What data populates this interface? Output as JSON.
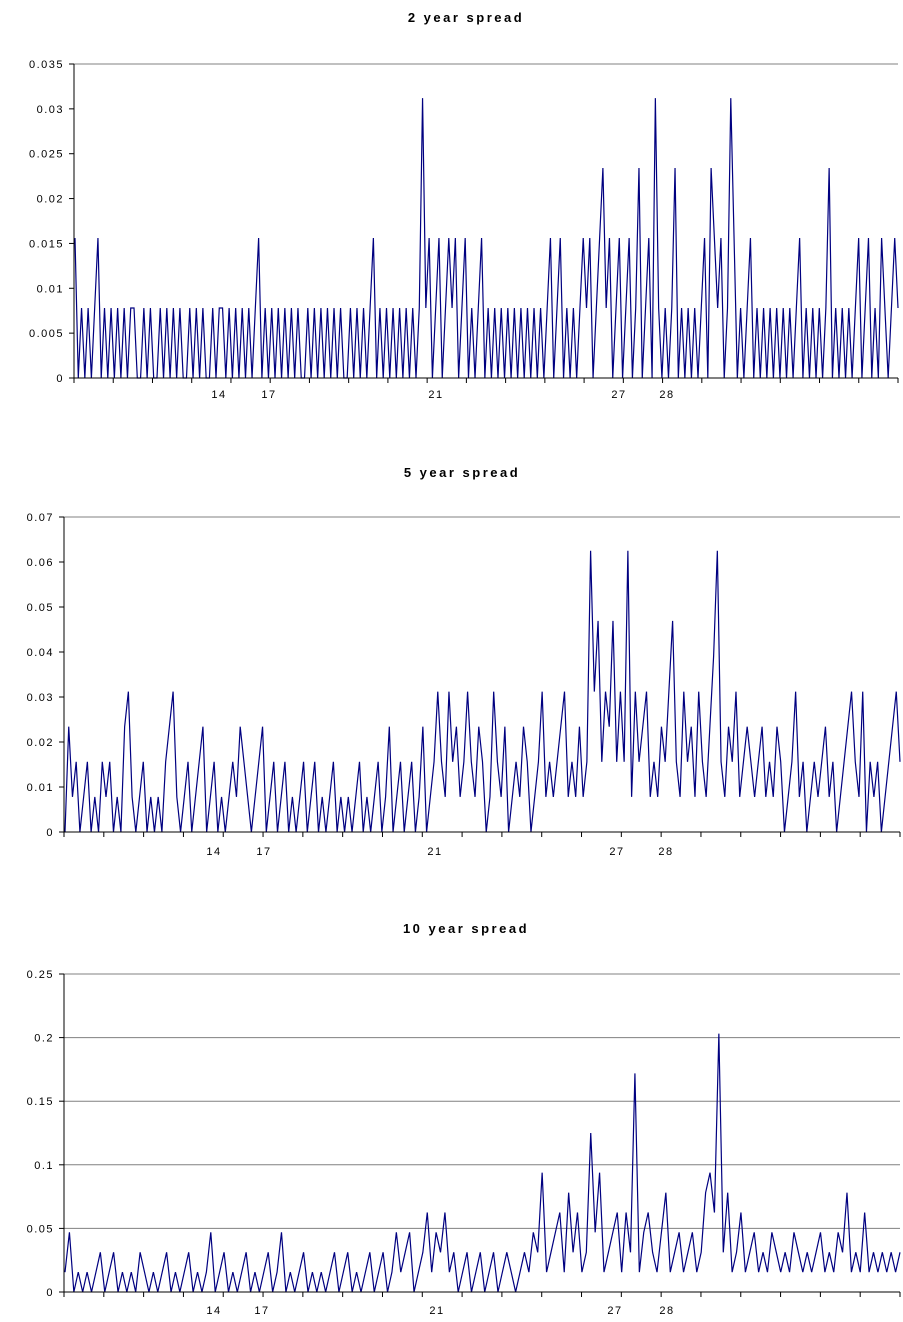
{
  "colors": {
    "series": "#000080",
    "axis": "#000000",
    "grid": "#808080",
    "background": "#ffffff"
  },
  "chart_data": [
    {
      "type": "line",
      "title": "2 year spread",
      "xlabel": "",
      "ylabel": "",
      "ylim": [
        0,
        0.035
      ],
      "yticks": [
        "0",
        "0.005",
        "0.01",
        "0.015",
        "0.02",
        "0.025",
        "0.03",
        "0.035"
      ],
      "xtick_labels": [
        "14",
        "17",
        "21",
        "27",
        "28"
      ],
      "grid": "horizontal-top-only",
      "legend": "none",
      "series": [
        {
          "values": [
            0.0156,
            0,
            0.0078,
            0,
            0.0078,
            0,
            0.0078,
            0.0156,
            0,
            0.0078,
            0,
            0.0078,
            0,
            0.0078,
            0,
            0.0078,
            0,
            0.0078,
            0.0078,
            0,
            0,
            0.0078,
            0,
            0.0078,
            0,
            0,
            0.0078,
            0,
            0.0078,
            0,
            0.0078,
            0,
            0.0078,
            0,
            0,
            0.0078,
            0,
            0.0078,
            0,
            0.0078,
            0,
            0,
            0.0078,
            0,
            0.0078,
            0.0078,
            0,
            0.0078,
            0,
            0.0078,
            0,
            0.0078,
            0,
            0.0078,
            0,
            0.0078,
            0.0156,
            0,
            0.0078,
            0,
            0.0078,
            0,
            0.0078,
            0,
            0.0078,
            0,
            0.0078,
            0,
            0.0078,
            0,
            0,
            0.0078,
            0,
            0.0078,
            0,
            0.0078,
            0,
            0.0078,
            0,
            0.0078,
            0,
            0.0078,
            0,
            0,
            0.0078,
            0,
            0.0078,
            0,
            0.0078,
            0,
            0.0078,
            0.0156,
            0,
            0.0078,
            0,
            0.0078,
            0,
            0.0078,
            0,
            0.0078,
            0,
            0.0078,
            0,
            0.0078,
            0,
            0.0078,
            0.0312,
            0.0078,
            0.0156,
            0,
            0.0078,
            0.0156,
            0,
            0.0078,
            0.0156,
            0.0078,
            0.0156,
            0,
            0.0078,
            0.0156,
            0,
            0.0078,
            0,
            0.0078,
            0.0156,
            0,
            0.0078,
            0,
            0.0078,
            0,
            0.0078,
            0,
            0.0078,
            0,
            0.0078,
            0,
            0.0078,
            0,
            0.0078,
            0,
            0.0078,
            0,
            0.0078,
            0,
            0.0078,
            0.0156,
            0,
            0.0078,
            0.0156,
            0,
            0.0078,
            0,
            0.0078,
            0,
            0.0078,
            0.0156,
            0.0078,
            0.0156,
            0,
            0.0078,
            0.0156,
            0.0234,
            0.0078,
            0.0156,
            0,
            0.0078,
            0.0156,
            0,
            0.0078,
            0.0156,
            0,
            0.0078,
            0.0234,
            0,
            0.0078,
            0.0156,
            0,
            0.0312,
            0.0078,
            0,
            0.0078,
            0,
            0.0078,
            0.0234,
            0,
            0.0078,
            0,
            0.0078,
            0,
            0.0078,
            0,
            0.0078,
            0.0156,
            0,
            0.0234,
            0.0156,
            0.0078,
            0.0156,
            0,
            0.0078,
            0.0312,
            0.0156,
            0,
            0.0078,
            0,
            0.0078,
            0.0156,
            0,
            0.0078,
            0,
            0.0078,
            0,
            0.0078,
            0,
            0.0078,
            0,
            0.0078,
            0,
            0.0078,
            0,
            0.0078,
            0.0156,
            0,
            0.0078,
            0,
            0.0078,
            0,
            0.0078,
            0,
            0.0078,
            0.0234,
            0,
            0.0078,
            0,
            0.0078,
            0,
            0.0078,
            0,
            0.0078,
            0.0156,
            0,
            0.0078,
            0.0156,
            0,
            0.0078,
            0,
            0.0156,
            0.0078,
            0,
            0.0078,
            0.0156,
            0.0078
          ]
        }
      ]
    },
    {
      "type": "line",
      "title": "5 year spread",
      "xlabel": "",
      "ylabel": "",
      "ylim": [
        0,
        0.07
      ],
      "yticks": [
        "0",
        "0.01",
        "0.02",
        "0.03",
        "0.04",
        "0.05",
        "0.06",
        "0.07"
      ],
      "xtick_labels": [
        "14",
        "17",
        "21",
        "27",
        "28"
      ],
      "grid": "horizontal-top-only",
      "legend": "none",
      "series": [
        {
          "values": [
            0,
            0.0234,
            0.0078,
            0.0156,
            0,
            0.0078,
            0.0156,
            0,
            0.0078,
            0,
            0.0156,
            0.0078,
            0.0156,
            0,
            0.0078,
            0,
            0.0234,
            0.0312,
            0.0078,
            0,
            0.0078,
            0.0156,
            0,
            0.0078,
            0,
            0.0078,
            0,
            0.0156,
            0.0234,
            0.0312,
            0.0078,
            0,
            0.0078,
            0.0156,
            0,
            0.0078,
            0.0156,
            0.0234,
            0,
            0.0078,
            0.0156,
            0,
            0.0078,
            0,
            0.0078,
            0.0156,
            0.0078,
            0.0234,
            0.0156,
            0.0078,
            0,
            0.0078,
            0.0156,
            0.0234,
            0,
            0.0078,
            0.0156,
            0,
            0.0078,
            0.0156,
            0,
            0.0078,
            0,
            0.0078,
            0.0156,
            0,
            0.0078,
            0.0156,
            0,
            0.0078,
            0,
            0.0078,
            0.0156,
            0,
            0.0078,
            0,
            0.0078,
            0,
            0.0078,
            0.0156,
            0,
            0.0078,
            0,
            0.0078,
            0.0156,
            0,
            0.0078,
            0.0234,
            0,
            0.0078,
            0.0156,
            0,
            0.0078,
            0.0156,
            0,
            0.0078,
            0.0234,
            0,
            0.0078,
            0.0156,
            0.0312,
            0.0156,
            0.0078,
            0.0312,
            0.0156,
            0.0234,
            0.0078,
            0.0156,
            0.0312,
            0.0156,
            0.0078,
            0.0234,
            0.0156,
            0,
            0.0078,
            0.0312,
            0.0156,
            0.0078,
            0.0234,
            0,
            0.0078,
            0.0156,
            0.0078,
            0.0234,
            0.0156,
            0,
            0.0078,
            0.0156,
            0.0312,
            0.0078,
            0.0156,
            0.0078,
            0.0156,
            0.0234,
            0.0312,
            0.0078,
            0.0156,
            0.0078,
            0.0234,
            0.0078,
            0.0156,
            0.0625,
            0.0312,
            0.0469,
            0.0156,
            0.0312,
            0.0234,
            0.0469,
            0.0156,
            0.0312,
            0.0156,
            0.0625,
            0.0078,
            0.0312,
            0.0156,
            0.0234,
            0.0312,
            0.0078,
            0.0156,
            0.0078,
            0.0234,
            0.0156,
            0.0312,
            0.0469,
            0.0156,
            0.0078,
            0.0312,
            0.0156,
            0.0234,
            0.0078,
            0.0312,
            0.0156,
            0.0078,
            0.0234,
            0.0391,
            0.0625,
            0.0156,
            0.0078,
            0.0234,
            0.0156,
            0.0312,
            0.0078,
            0.0156,
            0.0234,
            0.0156,
            0.0078,
            0.0156,
            0.0234,
            0.0078,
            0.0156,
            0.0078,
            0.0234,
            0.0156,
            0,
            0.0078,
            0.0156,
            0.0312,
            0.0078,
            0.0156,
            0,
            0.0078,
            0.0156,
            0.0078,
            0.0156,
            0.0234,
            0.0078,
            0.0156,
            0,
            0.0078,
            0.0156,
            0.0234,
            0.0312,
            0.0156,
            0.0078,
            0.0312,
            0,
            0.0156,
            0.0078,
            0.0156,
            0,
            0.0078,
            0.0156,
            0.0234,
            0.0312,
            0.0156
          ]
        }
      ]
    },
    {
      "type": "line",
      "title": "10 year spread",
      "xlabel": "",
      "ylabel": "",
      "ylim": [
        0,
        0.25
      ],
      "yticks": [
        "0",
        "0.05",
        "0.1",
        "0.15",
        "0.2",
        "0.25"
      ],
      "xtick_labels": [
        "14",
        "17",
        "21",
        "27",
        "28"
      ],
      "grid": "horizontal",
      "legend": "none",
      "series": [
        {
          "values": [
            0.0156,
            0.0469,
            0,
            0.0156,
            0,
            0.0156,
            0,
            0.0156,
            0.0312,
            0,
            0.0156,
            0.0312,
            0,
            0.0156,
            0,
            0.0156,
            0,
            0.0312,
            0.0156,
            0,
            0.0156,
            0,
            0.0156,
            0.0312,
            0,
            0.0156,
            0,
            0.0156,
            0.0312,
            0,
            0.0156,
            0,
            0.0156,
            0.0469,
            0,
            0.0156,
            0.0312,
            0,
            0.0156,
            0,
            0.0156,
            0.0312,
            0,
            0.0156,
            0,
            0.0156,
            0.0312,
            0,
            0.0156,
            0.0469,
            0,
            0.0156,
            0,
            0.0156,
            0.0312,
            0,
            0.0156,
            0,
            0.0156,
            0,
            0.0156,
            0.0312,
            0,
            0.0156,
            0.0312,
            0,
            0.0156,
            0,
            0.0156,
            0.0312,
            0,
            0.0156,
            0.0312,
            0,
            0.0156,
            0.0469,
            0.0156,
            0.0312,
            0.0469,
            0,
            0.0156,
            0.0312,
            0.0625,
            0.0156,
            0.0469,
            0.0312,
            0.0625,
            0.0156,
            0.0312,
            0,
            0.0156,
            0.0312,
            0,
            0.0156,
            0.0312,
            0,
            0.0156,
            0.0312,
            0,
            0.0156,
            0.0312,
            0.0156,
            0,
            0.0156,
            0.0312,
            0.0156,
            0.0469,
            0.0312,
            0.0938,
            0.0156,
            0.0312,
            0.0469,
            0.0625,
            0.0156,
            0.0781,
            0.0312,
            0.0625,
            0.0156,
            0.0312,
            0.125,
            0.0469,
            0.0938,
            0.0156,
            0.0312,
            0.0469,
            0.0625,
            0.0156,
            0.0625,
            0.0312,
            0.1719,
            0.0156,
            0.0469,
            0.0625,
            0.0312,
            0.0156,
            0.0469,
            0.0781,
            0.0156,
            0.0312,
            0.0469,
            0.0156,
            0.0312,
            0.0469,
            0.0156,
            0.0312,
            0.0781,
            0.0938,
            0.0625,
            0.2031,
            0.0312,
            0.0781,
            0.0156,
            0.0312,
            0.0625,
            0.0156,
            0.0312,
            0.0469,
            0.0156,
            0.0312,
            0.0156,
            0.0469,
            0.0312,
            0.0156,
            0.0312,
            0.0156,
            0.0469,
            0.0312,
            0.0156,
            0.0312,
            0.0156,
            0.0312,
            0.0469,
            0.0156,
            0.0312,
            0.0156,
            0.0469,
            0.0312,
            0.0781,
            0.0156,
            0.0312,
            0.0156,
            0.0625,
            0.0156,
            0.0312,
            0.0156,
            0.0312,
            0.0156,
            0.0312,
            0.0156,
            0.0312
          ]
        }
      ]
    }
  ]
}
